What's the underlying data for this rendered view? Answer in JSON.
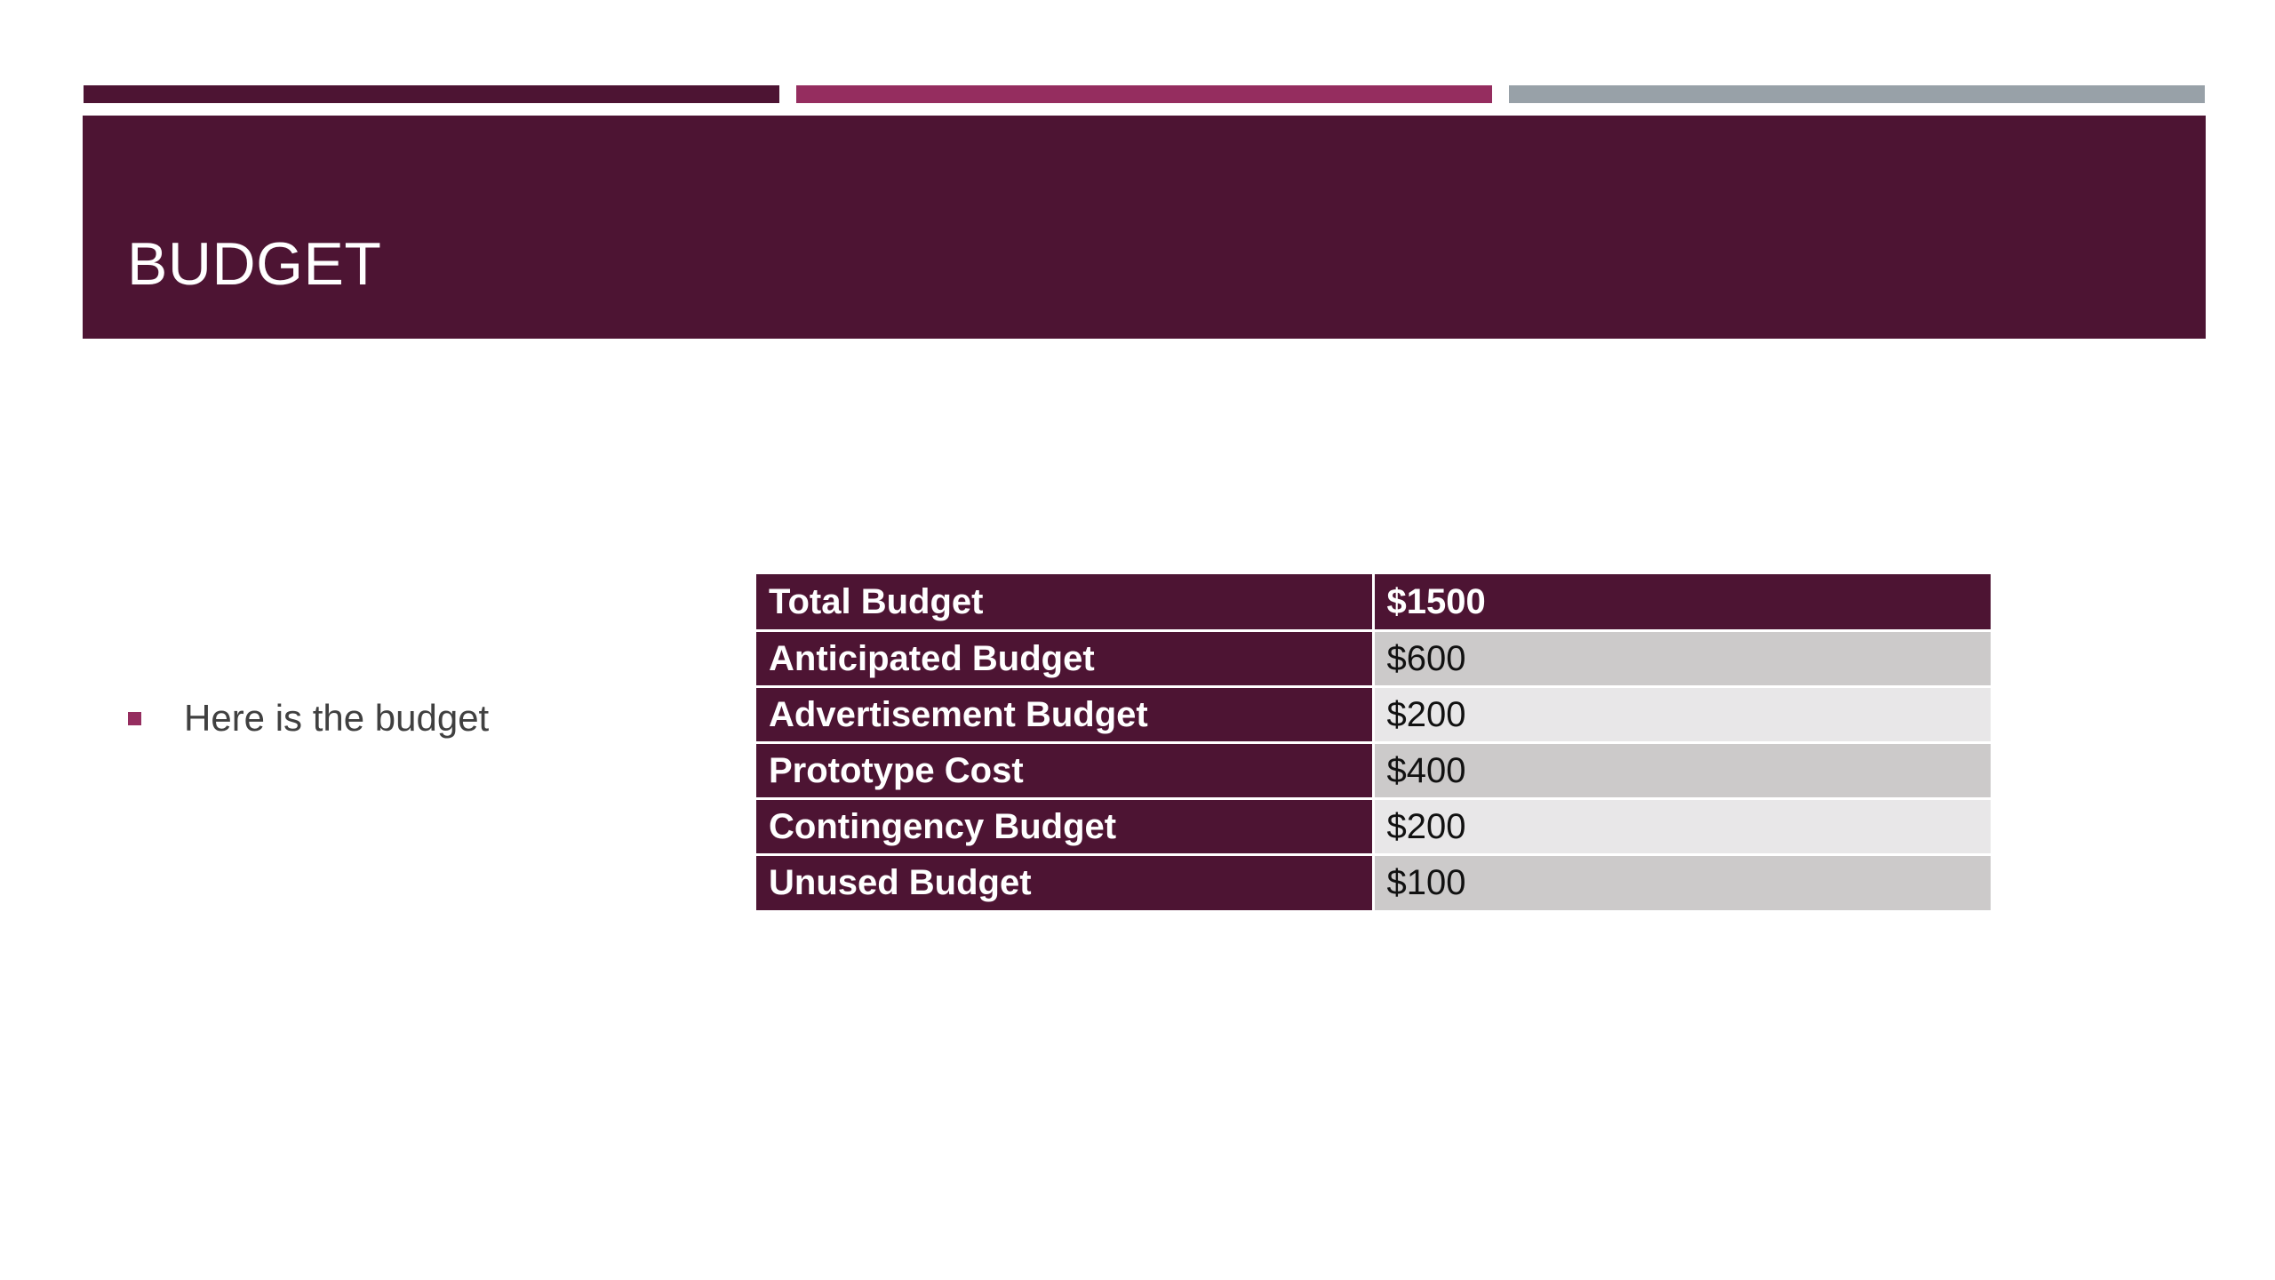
{
  "slide": {
    "title": "BUDGET",
    "bullets": [
      "Here is the budget"
    ]
  },
  "colors": {
    "dark_plum": "#4d1433",
    "magenta": "#952d5f",
    "gray": "#98a1a8",
    "row_gray": "#cccaca",
    "row_light": "#e8e7e8"
  },
  "table": {
    "rows": [
      {
        "label": "Total Budget",
        "value": "$1500"
      },
      {
        "label": "Anticipated Budget",
        "value": "$600"
      },
      {
        "label": "Advertisement Budget",
        "value": "$200"
      },
      {
        "label": "Prototype Cost",
        "value": "$400"
      },
      {
        "label": "Contingency Budget",
        "value": "$200"
      },
      {
        "label": "Unused Budget",
        "value": "$100"
      }
    ]
  }
}
